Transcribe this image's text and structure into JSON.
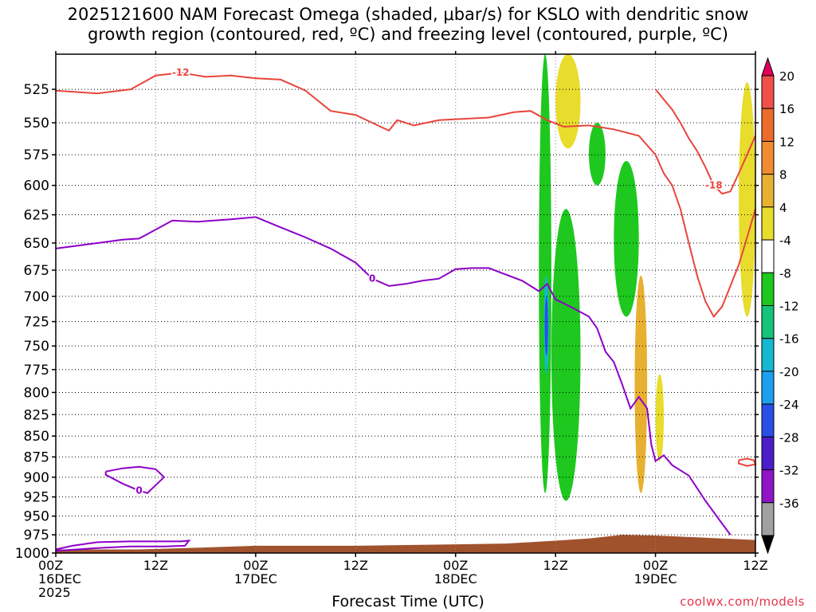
{
  "title_line1": "2025121600 NAM Forecast Omega (shaded, μbar/s) for KSLO with dendritic snow",
  "title_line2": "growth region (contoured, red, ºC) and freezing level (contoured, purple, ºC)",
  "credit": "coolwx.com/models",
  "colors": {
    "dgz_contour": "#e8453c",
    "freezing_contour": "#8c00c8",
    "terrain": "#a0522d"
  },
  "chart_data": {
    "type": "heatmap",
    "title": "2025121600 NAM Forecast Omega (shaded, μbar/s) for KSLO with dendritic snow growth region (contoured, red, ºC) and freezing level (contoured, purple, ºC)",
    "xlabel": "Forecast Time (UTC)",
    "ylabel": "",
    "x_range_hours": [
      0,
      84
    ],
    "y_range_hPa": [
      1000,
      500
    ],
    "y_ticks": [
      525,
      550,
      575,
      600,
      625,
      650,
      675,
      700,
      725,
      750,
      775,
      800,
      825,
      850,
      875,
      900,
      925,
      950,
      975,
      1000
    ],
    "x_ticks": [
      {
        "hour": 0,
        "lines": [
          "00Z",
          "16DEC",
          "2025"
        ]
      },
      {
        "hour": 12,
        "lines": [
          "12Z"
        ]
      },
      {
        "hour": 24,
        "lines": [
          "00Z",
          "17DEC"
        ]
      },
      {
        "hour": 36,
        "lines": [
          "12Z"
        ]
      },
      {
        "hour": 48,
        "lines": [
          "00Z",
          "18DEC"
        ]
      },
      {
        "hour": 60,
        "lines": [
          "12Z"
        ]
      },
      {
        "hour": 72,
        "lines": [
          "00Z",
          "19DEC"
        ]
      },
      {
        "hour": 84,
        "lines": [
          "12Z"
        ]
      }
    ],
    "grid": true,
    "colorbar": {
      "labels": [
        "20",
        "16",
        "12",
        "8",
        "4",
        "-4",
        "-8",
        "-12",
        "-16",
        "-20",
        "-24",
        "-28",
        "-32",
        "-36"
      ],
      "bins": [
        {
          "color": "#e0005c"
        },
        {
          "color": "#f0504a"
        },
        {
          "color": "#ec6c2a"
        },
        {
          "color": "#f08c30"
        },
        {
          "color": "#e8b030"
        },
        {
          "color": "#e8dc2c"
        },
        {
          "color": "#ffffff"
        },
        {
          "color": "#1ec81e"
        },
        {
          "color": "#14c47a"
        },
        {
          "color": "#14b8d0"
        },
        {
          "color": "#1ea0f0"
        },
        {
          "color": "#2850e6"
        },
        {
          "color": "#4a1ec8"
        },
        {
          "color": "#9014c8"
        },
        {
          "color": "#a0a0a0"
        },
        {
          "color": "#000000"
        }
      ]
    },
    "dgz_contour_-12": {
      "label": "-12",
      "points": [
        [
          0,
          526
        ],
        [
          5,
          528
        ],
        [
          9,
          525
        ],
        [
          12,
          515
        ],
        [
          15,
          513
        ],
        [
          18,
          516
        ],
        [
          21,
          515
        ],
        [
          24,
          517
        ],
        [
          27,
          518
        ],
        [
          30,
          526
        ],
        [
          33,
          541
        ],
        [
          36,
          544
        ],
        [
          38,
          550
        ],
        [
          40,
          556
        ],
        [
          41,
          548
        ],
        [
          43,
          552
        ],
        [
          46,
          548
        ],
        [
          49,
          547
        ],
        [
          52,
          546
        ],
        [
          55,
          542
        ],
        [
          57,
          541
        ],
        [
          59,
          548
        ],
        [
          61,
          553
        ],
        [
          64,
          552
        ],
        [
          67,
          555
        ],
        [
          70,
          560
        ],
        [
          72,
          575
        ],
        [
          73,
          590
        ],
        [
          74,
          600
        ],
        [
          75,
          620
        ],
        [
          76,
          650
        ],
        [
          77,
          680
        ],
        [
          78,
          705
        ],
        [
          79,
          720
        ],
        [
          80,
          710
        ],
        [
          81,
          690
        ],
        [
          82,
          670
        ],
        [
          83,
          645
        ],
        [
          84,
          620
        ]
      ]
    },
    "dgz_contour_-18": {
      "label": "-18",
      "points": [
        [
          72,
          525
        ],
        [
          74,
          540
        ],
        [
          75,
          550
        ],
        [
          76,
          562
        ],
        [
          77,
          572
        ],
        [
          78,
          585
        ],
        [
          79,
          600
        ],
        [
          80,
          607
        ],
        [
          81,
          605
        ],
        [
          82,
          590
        ],
        [
          83,
          575
        ],
        [
          84,
          560
        ]
      ]
    },
    "dgz_contour_-18_small": {
      "points": [
        [
          82,
          879
        ],
        [
          83,
          877
        ],
        [
          83.8,
          879
        ],
        [
          84,
          884
        ],
        [
          83,
          886
        ],
        [
          82,
          883
        ],
        [
          82,
          879
        ]
      ]
    },
    "freezing_contour_main": {
      "label": "0",
      "points": [
        [
          0,
          655
        ],
        [
          3,
          652
        ],
        [
          6,
          649
        ],
        [
          8,
          647
        ],
        [
          10,
          646
        ],
        [
          12,
          638
        ],
        [
          14,
          630
        ],
        [
          17,
          631
        ],
        [
          21,
          629
        ],
        [
          24,
          627
        ],
        [
          27,
          636
        ],
        [
          30,
          645
        ],
        [
          33,
          655
        ],
        [
          36,
          668
        ],
        [
          38,
          683
        ],
        [
          40,
          690
        ],
        [
          42,
          688
        ],
        [
          44,
          685
        ],
        [
          46,
          683
        ],
        [
          48,
          674
        ],
        [
          50,
          673
        ],
        [
          52,
          673
        ],
        [
          54,
          679
        ],
        [
          56,
          685
        ],
        [
          58,
          695
        ],
        [
          59,
          688
        ],
        [
          60,
          703
        ],
        [
          62,
          711
        ],
        [
          64,
          720
        ],
        [
          65,
          732
        ],
        [
          66,
          756
        ],
        [
          67,
          767
        ],
        [
          68,
          791
        ],
        [
          69,
          818
        ],
        [
          70,
          805
        ],
        [
          71,
          818
        ],
        [
          71.5,
          860
        ],
        [
          72,
          880
        ],
        [
          73,
          873
        ],
        [
          74,
          885
        ],
        [
          76,
          898
        ],
        [
          78,
          930
        ],
        [
          80,
          960
        ],
        [
          81,
          975
        ]
      ]
    },
    "freezing_contour_surface": {
      "points": [
        [
          0,
          995
        ],
        [
          2,
          990
        ],
        [
          5,
          985
        ],
        [
          9,
          984
        ],
        [
          13,
          984
        ],
        [
          15,
          984
        ],
        [
          16,
          983
        ],
        [
          15.5,
          990
        ],
        [
          13,
          991
        ],
        [
          9,
          991
        ],
        [
          5,
          993
        ],
        [
          0,
          997
        ]
      ]
    },
    "freezing_contour_loop": {
      "label": "0",
      "points": [
        [
          6,
          893
        ],
        [
          8,
          889
        ],
        [
          10,
          887
        ],
        [
          12,
          890
        ],
        [
          13,
          900
        ],
        [
          12,
          910
        ],
        [
          11,
          920
        ],
        [
          10,
          917
        ],
        [
          8,
          908
        ],
        [
          6,
          897
        ],
        [
          6,
          893
        ]
      ]
    },
    "omega_features": [
      {
        "value": -8,
        "time_range": [
          58,
          59.5
        ],
        "p_top": 500,
        "p_bottom": 920
      },
      {
        "value": -16,
        "time_range": [
          58.6,
          59.2
        ],
        "p_top": 680,
        "p_bottom": 780
      },
      {
        "value": -24,
        "time_range": [
          58.7,
          59.1
        ],
        "p_top": 700,
        "p_bottom": 760
      },
      {
        "value": -8,
        "time_range": [
          59.5,
          63
        ],
        "p_top": 620,
        "p_bottom": 930
      },
      {
        "value": -8,
        "time_range": [
          64,
          66
        ],
        "p_top": 550,
        "p_bottom": 600
      },
      {
        "value": -8,
        "time_range": [
          67,
          70
        ],
        "p_top": 580,
        "p_bottom": 720
      },
      {
        "value": 4,
        "time_range": [
          60,
          63
        ],
        "p_top": 500,
        "p_bottom": 570
      },
      {
        "value": 8,
        "time_range": [
          69.5,
          71
        ],
        "p_top": 680,
        "p_bottom": 920
      },
      {
        "value": 4,
        "time_range": [
          72,
          73
        ],
        "p_top": 780,
        "p_bottom": 880
      },
      {
        "value": 4,
        "time_range": [
          82,
          84
        ],
        "p_top": 520,
        "p_bottom": 720
      }
    ],
    "terrain": {
      "points": [
        [
          0,
          995
        ],
        [
          10,
          995
        ],
        [
          16,
          993
        ],
        [
          24,
          990
        ],
        [
          36,
          990
        ],
        [
          48,
          988
        ],
        [
          54,
          987
        ],
        [
          60,
          983
        ],
        [
          64,
          980
        ],
        [
          68,
          975
        ],
        [
          72,
          976
        ],
        [
          76,
          978
        ],
        [
          80,
          980
        ],
        [
          84,
          982
        ]
      ]
    }
  }
}
